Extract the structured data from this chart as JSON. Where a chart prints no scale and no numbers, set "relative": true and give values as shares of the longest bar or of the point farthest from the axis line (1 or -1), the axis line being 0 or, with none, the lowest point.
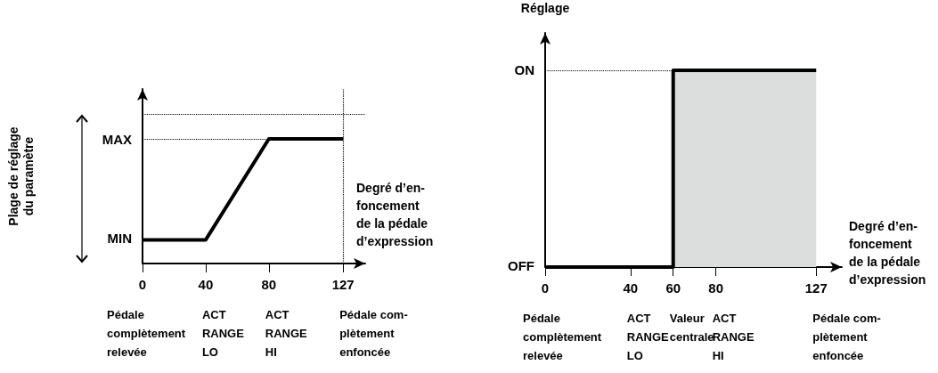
{
  "chart_data": [
    {
      "type": "line",
      "relative": true,
      "ylabel": "Plage de réglage\ndu paramètre",
      "xlabel": "Degré d’en-\nfoncement\nde la pédale\nd’expression",
      "x": [
        0,
        40,
        80,
        127
      ],
      "values": [
        0.19,
        0.19,
        1,
        1
      ],
      "color": "#000000",
      "marker": "none",
      "xlim": [
        0,
        141
      ],
      "xticks": [
        0,
        40,
        80,
        127
      ],
      "ref_lines": [
        {
          "axis": "y",
          "value": 1.2,
          "line_style": "dotted",
          "color": "#000000"
        },
        {
          "axis": "y",
          "value": 1,
          "label": "MAX",
          "line_style": "dotted",
          "color": "#000000"
        },
        {
          "axis": "x",
          "value": 127,
          "line_style": "dotted",
          "color": "#000000"
        }
      ],
      "annotations": [
        {
          "text": "MIN",
          "x": 0,
          "y": 0.19
        },
        "Pédale\ncomplètement\nrelevée",
        "ACT\nRANGE\nLO",
        "ACT\nRANGE\nHI",
        "Pédale com-\nplètement\nenfoncée"
      ]
    },
    {
      "type": "step",
      "relative": true,
      "ylabel": "Réglage",
      "xlabel": "Degré d’en-\nfoncement\nde la pédale\nd’expression",
      "x": [
        0,
        60,
        127
      ],
      "values": [
        0,
        1,
        1
      ],
      "color": "#000000",
      "marker": "none",
      "xlim": [
        0,
        139
      ],
      "xticks": [
        0,
        40,
        60,
        80,
        127
      ],
      "ref_lines": [
        {
          "axis": "y",
          "value": 1,
          "label": "ON",
          "line_style": "dotted",
          "color": "#000000"
        }
      ],
      "bands": [
        {
          "axis": "x",
          "from": 60,
          "to": 127,
          "color": "#dcdedd"
        }
      ],
      "annotations": [
        {
          "text": "OFF",
          "x": 0,
          "y": 0
        },
        "Pédale\ncomplètement\nrelevée",
        "ACT\nRANGE\nLO",
        "Valeur\ncentrale",
        "ACT\nRANGE\nHI",
        "Pédale com-\nplètement\nenfoncée"
      ]
    }
  ]
}
